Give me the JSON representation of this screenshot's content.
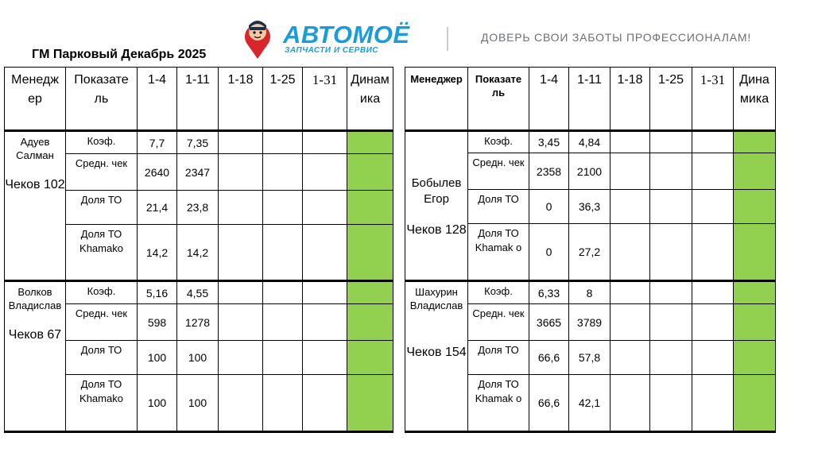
{
  "title": "ГМ Парковый Декабрь 2025",
  "logo": {
    "brand": "АВТОМОЁ",
    "sub": "ЗАПЧАСТИ И СЕРВИС"
  },
  "slogan": "ДОВЕРЬ СВОИ ЗАБОТЫ ПРОФЕССИОНАЛАМ!",
  "colors": {
    "dynamics_fill": "#92d050",
    "brand_blue": "#1a9cd8"
  },
  "left_table": {
    "headers": [
      "Менедж ер",
      "Показате ль",
      "1-4",
      "1-11",
      "1-18",
      "1-25",
      "1-31",
      "Динам ика"
    ],
    "groups": [
      {
        "manager": "Адуев Салман",
        "checks": "Чеков 102",
        "rows": [
          {
            "indicator": "Коэф.",
            "v": [
              "7,7",
              "7,35",
              "",
              "",
              ""
            ]
          },
          {
            "indicator": "Средн. чек",
            "v": [
              "2640",
              "2347",
              "",
              "",
              ""
            ]
          },
          {
            "indicator": "Доля ТО",
            "v": [
              "21,4",
              "23,8",
              "",
              "",
              ""
            ]
          },
          {
            "indicator": "Доля ТО Khamako",
            "v": [
              "14,2",
              "14,2",
              "",
              "",
              ""
            ]
          }
        ]
      },
      {
        "manager": "Волков Владислав",
        "checks": "Чеков 67",
        "rows": [
          {
            "indicator": "Коэф.",
            "v": [
              "5,16",
              "4,55",
              "",
              "",
              ""
            ]
          },
          {
            "indicator": "Средн. чек",
            "v": [
              "598",
              "1278",
              "",
              "",
              ""
            ]
          },
          {
            "indicator": "Доля ТО",
            "v": [
              "100",
              "100",
              "",
              "",
              ""
            ]
          },
          {
            "indicator": "Доля ТО Khamako",
            "v": [
              "100",
              "100",
              "",
              "",
              ""
            ]
          }
        ]
      }
    ]
  },
  "right_table": {
    "headers": [
      "Менеджер",
      "Показате ль",
      "1-4",
      "1-11",
      "1-18",
      "1-25",
      "1-31",
      "Дина мика"
    ],
    "groups": [
      {
        "manager": "Бобылев Егор",
        "checks": "Чеков 128",
        "rows": [
          {
            "indicator": "Коэф.",
            "v": [
              "3,45",
              "4,84",
              "",
              "",
              ""
            ]
          },
          {
            "indicator": "Средн. чек",
            "v": [
              "2358",
              "2100",
              "",
              "",
              ""
            ]
          },
          {
            "indicator": "Доля ТО",
            "v": [
              "0",
              "36,3",
              "",
              "",
              ""
            ]
          },
          {
            "indicator": "Доля ТО Khamak o",
            "v": [
              "0",
              "27,2",
              "",
              "",
              ""
            ]
          }
        ]
      },
      {
        "manager": "Шахурин Владислав",
        "checks": "Чеков 154",
        "rows": [
          {
            "indicator": "Коэф.",
            "v": [
              "6,33",
              "8",
              "",
              "",
              ""
            ]
          },
          {
            "indicator": "Средн. чек",
            "v": [
              "3665",
              "3789",
              "",
              "",
              ""
            ]
          },
          {
            "indicator": "Доля ТО",
            "v": [
              "66,6",
              "57,8",
              "",
              "",
              ""
            ]
          },
          {
            "indicator": "Доля ТО Khamak o",
            "v": [
              "66,6",
              "42,1",
              "",
              "",
              ""
            ]
          }
        ]
      }
    ]
  }
}
